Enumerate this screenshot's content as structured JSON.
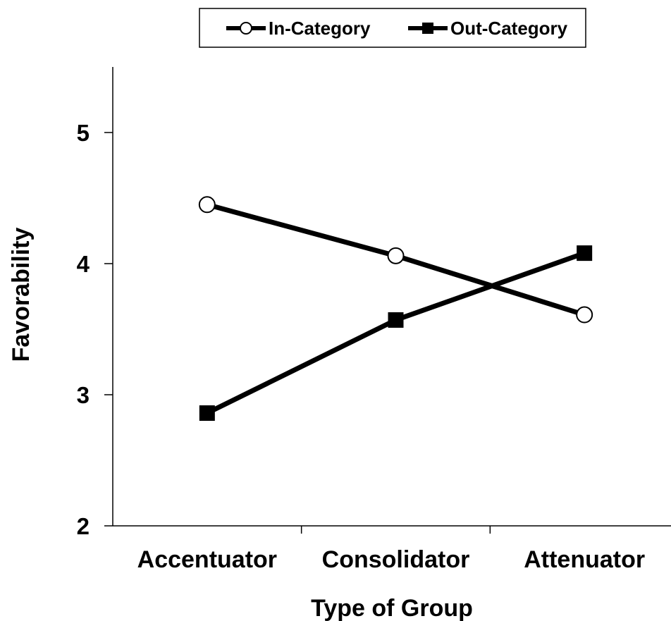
{
  "chart_data": {
    "type": "line",
    "xlabel": "Type of Group",
    "ylabel": "Favorability",
    "categories": [
      "Accentuator",
      "Consolidator",
      "Attenuator"
    ],
    "ylim": [
      2,
      5.5
    ],
    "yticks": [
      "2",
      "3",
      "4",
      "5"
    ],
    "legend_position": "top-center",
    "series": [
      {
        "name": "In-Category",
        "marker": "open-circle",
        "values": [
          4.45,
          4.06,
          3.61
        ],
        "color": "#000000"
      },
      {
        "name": "Out-Category",
        "marker": "filled-square",
        "values": [
          2.86,
          3.57,
          4.08
        ],
        "color": "#000000"
      }
    ]
  }
}
